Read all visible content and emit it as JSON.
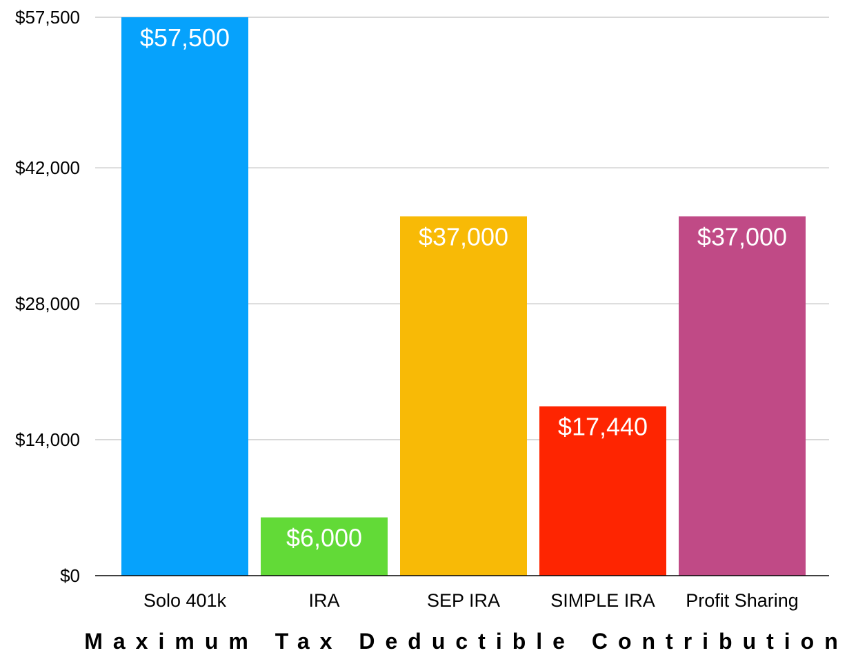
{
  "chart_data": {
    "type": "bar",
    "title": "",
    "xlabel": "Maximum Tax Deductible Contribution",
    "ylabel": "",
    "ylim": [
      0,
      57500
    ],
    "yticks": [
      0,
      14000,
      28000,
      42000,
      57500
    ],
    "ytick_labels": [
      "$0",
      "$14,000",
      "$28,000",
      "$42,000",
      "$57,500"
    ],
    "categories": [
      "Solo 401k",
      "IRA",
      "SEP IRA",
      "SIMPLE IRA",
      "Profit Sharing"
    ],
    "values": [
      57500,
      6000,
      37000,
      17440,
      37000
    ],
    "data_labels": [
      "$57,500",
      "$6,000",
      "$37,000",
      "$17,440",
      "$37,000"
    ],
    "colors": [
      "#06a2fc",
      "#62da37",
      "#f8ba06",
      "#fe2501",
      "#c04a86"
    ],
    "grid": true,
    "legend": "none"
  }
}
